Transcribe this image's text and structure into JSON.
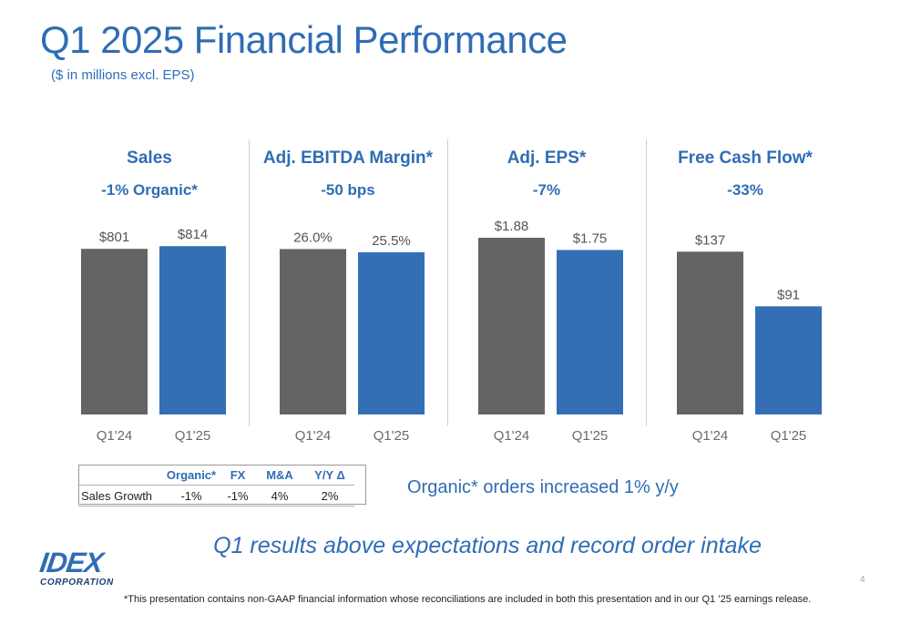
{
  "title": "Q1 2025 Financial Performance",
  "subtitle": "($ in millions excl. EPS)",
  "colors": {
    "prior": "#646464",
    "current": "#346fb5",
    "accent": "#2f6db5"
  },
  "chart_data": [
    {
      "type": "bar",
      "title": "Sales",
      "subtitle": "-1% Organic*",
      "categories": [
        "Q1'24",
        "Q1'25"
      ],
      "values": [
        801,
        814
      ],
      "labels": [
        "$801",
        "$814"
      ],
      "ylim": [
        0,
        1000
      ],
      "grid": false
    },
    {
      "type": "bar",
      "title": "Adj. EBITDA Margin*",
      "subtitle": "-50 bps",
      "categories": [
        "Q1'24",
        "Q1'25"
      ],
      "values": [
        26.0,
        25.5
      ],
      "labels": [
        "26.0%",
        "25.5%"
      ],
      "ylim": [
        0,
        32.5
      ],
      "grid": false
    },
    {
      "type": "bar",
      "title": "Adj. EPS*",
      "subtitle": "-7%",
      "categories": [
        "Q1'24",
        "Q1'25"
      ],
      "values": [
        1.88,
        1.75
      ],
      "labels": [
        "$1.88",
        "$1.75"
      ],
      "ylim": [
        0,
        2.2
      ],
      "grid": false
    },
    {
      "type": "bar",
      "title": "Free Cash Flow*",
      "subtitle": "-33%",
      "categories": [
        "Q1'24",
        "Q1'25"
      ],
      "values": [
        137,
        91
      ],
      "labels": [
        "$137",
        "$91"
      ],
      "ylim": [
        0,
        174
      ],
      "grid": false
    }
  ],
  "growth_table": {
    "headers": [
      "",
      "Organic*",
      "FX",
      "M&A",
      "Y/Y Δ"
    ],
    "row": [
      "Sales Growth",
      "-1%",
      "-1%",
      "4%",
      "2%"
    ]
  },
  "orders_note": "Organic* orders increased 1% y/y",
  "tagline": "Q1 results above expectations and record order intake",
  "logo": {
    "mark": "IDEX",
    "word": "CORPORATION"
  },
  "page_number": "4",
  "footnote": "*This presentation contains non-GAAP financial information whose reconciliations are included in both this presentation and in our Q1 ’25 earnings release."
}
